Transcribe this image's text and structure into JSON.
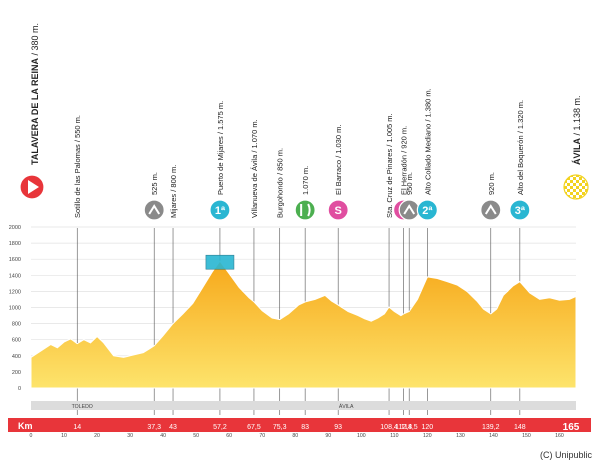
{
  "chart_data": {
    "type": "area",
    "xlabel": "Km",
    "x_range": [
      0,
      165
    ],
    "ylim": [
      0,
      2000
    ],
    "y_ticks": [
      0,
      200,
      400,
      600,
      800,
      1000,
      1200,
      1400,
      1600,
      1800,
      2000
    ],
    "x_ticks": [
      0,
      10,
      20,
      30,
      40,
      50,
      60,
      70,
      80,
      90,
      100,
      110,
      120,
      130,
      140,
      150,
      160
    ],
    "grid": true,
    "profile": [
      {
        "x": 0,
        "y": 380
      },
      {
        "x": 3,
        "y": 460
      },
      {
        "x": 6,
        "y": 540
      },
      {
        "x": 8,
        "y": 500
      },
      {
        "x": 10,
        "y": 570
      },
      {
        "x": 12,
        "y": 610
      },
      {
        "x": 14,
        "y": 550
      },
      {
        "x": 16,
        "y": 600
      },
      {
        "x": 18,
        "y": 560
      },
      {
        "x": 20,
        "y": 640
      },
      {
        "x": 22,
        "y": 560
      },
      {
        "x": 25,
        "y": 400
      },
      {
        "x": 28,
        "y": 380
      },
      {
        "x": 30,
        "y": 400
      },
      {
        "x": 34,
        "y": 440
      },
      {
        "x": 36,
        "y": 490
      },
      {
        "x": 37.3,
        "y": 525
      },
      {
        "x": 40,
        "y": 650
      },
      {
        "x": 43,
        "y": 800
      },
      {
        "x": 46,
        "y": 920
      },
      {
        "x": 49,
        "y": 1050
      },
      {
        "x": 52,
        "y": 1250
      },
      {
        "x": 55,
        "y": 1450
      },
      {
        "x": 57.2,
        "y": 1575
      },
      {
        "x": 60,
        "y": 1420
      },
      {
        "x": 63,
        "y": 1250
      },
      {
        "x": 66,
        "y": 1120
      },
      {
        "x": 67.5,
        "y": 1070
      },
      {
        "x": 70,
        "y": 960
      },
      {
        "x": 73,
        "y": 870
      },
      {
        "x": 75.3,
        "y": 850
      },
      {
        "x": 78,
        "y": 920
      },
      {
        "x": 81,
        "y": 1030
      },
      {
        "x": 83,
        "y": 1070
      },
      {
        "x": 86,
        "y": 1100
      },
      {
        "x": 89,
        "y": 1150
      },
      {
        "x": 91,
        "y": 1080
      },
      {
        "x": 93,
        "y": 1030
      },
      {
        "x": 96,
        "y": 950
      },
      {
        "x": 99,
        "y": 900
      },
      {
        "x": 101,
        "y": 860
      },
      {
        "x": 103,
        "y": 830
      },
      {
        "x": 105,
        "y": 870
      },
      {
        "x": 107,
        "y": 920
      },
      {
        "x": 108.4,
        "y": 1005
      },
      {
        "x": 110,
        "y": 950
      },
      {
        "x": 112,
        "y": 900
      },
      {
        "x": 112.8,
        "y": 920
      },
      {
        "x": 114.5,
        "y": 950
      },
      {
        "x": 117,
        "y": 1100
      },
      {
        "x": 120,
        "y": 1380
      },
      {
        "x": 123,
        "y": 1360
      },
      {
        "x": 126,
        "y": 1320
      },
      {
        "x": 129,
        "y": 1280
      },
      {
        "x": 132,
        "y": 1200
      },
      {
        "x": 135,
        "y": 1080
      },
      {
        "x": 137,
        "y": 980
      },
      {
        "x": 139.2,
        "y": 920
      },
      {
        "x": 141,
        "y": 980
      },
      {
        "x": 143,
        "y": 1150
      },
      {
        "x": 146,
        "y": 1270
      },
      {
        "x": 148,
        "y": 1320
      },
      {
        "x": 151,
        "y": 1180
      },
      {
        "x": 154,
        "y": 1100
      },
      {
        "x": 157,
        "y": 1120
      },
      {
        "x": 160,
        "y": 1090
      },
      {
        "x": 163,
        "y": 1100
      },
      {
        "x": 165,
        "y": 1138
      }
    ],
    "km_labels": [
      "14",
      "37,3",
      "43",
      "57,2",
      "67,5",
      "75,3",
      "83",
      "93",
      "108,4",
      "112,8",
      "114,5",
      "120",
      "139,2",
      "148"
    ],
    "km_label_values": [
      14,
      37.3,
      43,
      57.2,
      67.5,
      75.3,
      83,
      93,
      108.4,
      112.8,
      114.5,
      120,
      139.2,
      148
    ],
    "km_total": "165",
    "start": {
      "label": "TALAVERA DE LA REINA",
      "alt": " / 380 m.",
      "km": 0
    },
    "finish": {
      "label": "ÁVILA",
      "alt": " / 1.138 m.",
      "km": 165
    },
    "waypoints": [
      {
        "km": 14,
        "label": "Sotillo de las Palomas / 550 m.",
        "icon": null
      },
      {
        "km": 37.3,
        "label": "525 m.",
        "icon": "sprint-icon"
      },
      {
        "km": 43,
        "label": "Mijares / 800 m.",
        "icon": null
      },
      {
        "km": 57.2,
        "label": "Puerto de Mijares / 1.575 m.",
        "icon": "climb-icon",
        "cat": "1ª"
      },
      {
        "km": 67.5,
        "label": "Villanueva de Ávila / 1.070 m.",
        "icon": null
      },
      {
        "km": 75.3,
        "label": "Burgohondo / 850 m.",
        "icon": null
      },
      {
        "km": 83,
        "label": "1.070 m.",
        "icon": "feed-icon"
      },
      {
        "km": 93,
        "label": "El Barraco / 1.030 m.",
        "icon": "sprint-icon",
        "cat": "S"
      },
      {
        "km": 108.4,
        "label": "Sta. Cruz de Pinares / 1.005 m.",
        "icon": null
      },
      {
        "km": 112.8,
        "label": "El Herradón / 920 m.",
        "icon": "sprint-icon",
        "cat": "S"
      },
      {
        "km": 114.5,
        "label": "950 m.",
        "icon": "sprint-icon"
      },
      {
        "km": 120,
        "label": "Alto Collado Mediano / 1.380 m.",
        "icon": "climb-icon",
        "cat": "2ª"
      },
      {
        "km": 139.2,
        "label": "920 m.",
        "icon": "sprint-icon"
      },
      {
        "km": 148,
        "label": "Alto del Boquerón / 1.320 m.",
        "icon": "climb-icon",
        "cat": "3ª"
      }
    ],
    "provinces": [
      {
        "name": "TOLEDO",
        "from": 0,
        "to": 37
      },
      {
        "name": "ÁVILA",
        "from": 37,
        "to": 165
      }
    ],
    "colors": {
      "fill_top": "#f7a81a",
      "fill_bottom": "#fde46c",
      "outline": "#ffffff",
      "km_bar": "#e8353a",
      "start_marker": "#e8353a",
      "climb_badge": "#29b6d2",
      "sprint_badge": "#e04ea0",
      "icon_gray": "#8a8a8a",
      "finish_yellow": "#f2d21f"
    }
  },
  "credit": "(C) Unipublic"
}
